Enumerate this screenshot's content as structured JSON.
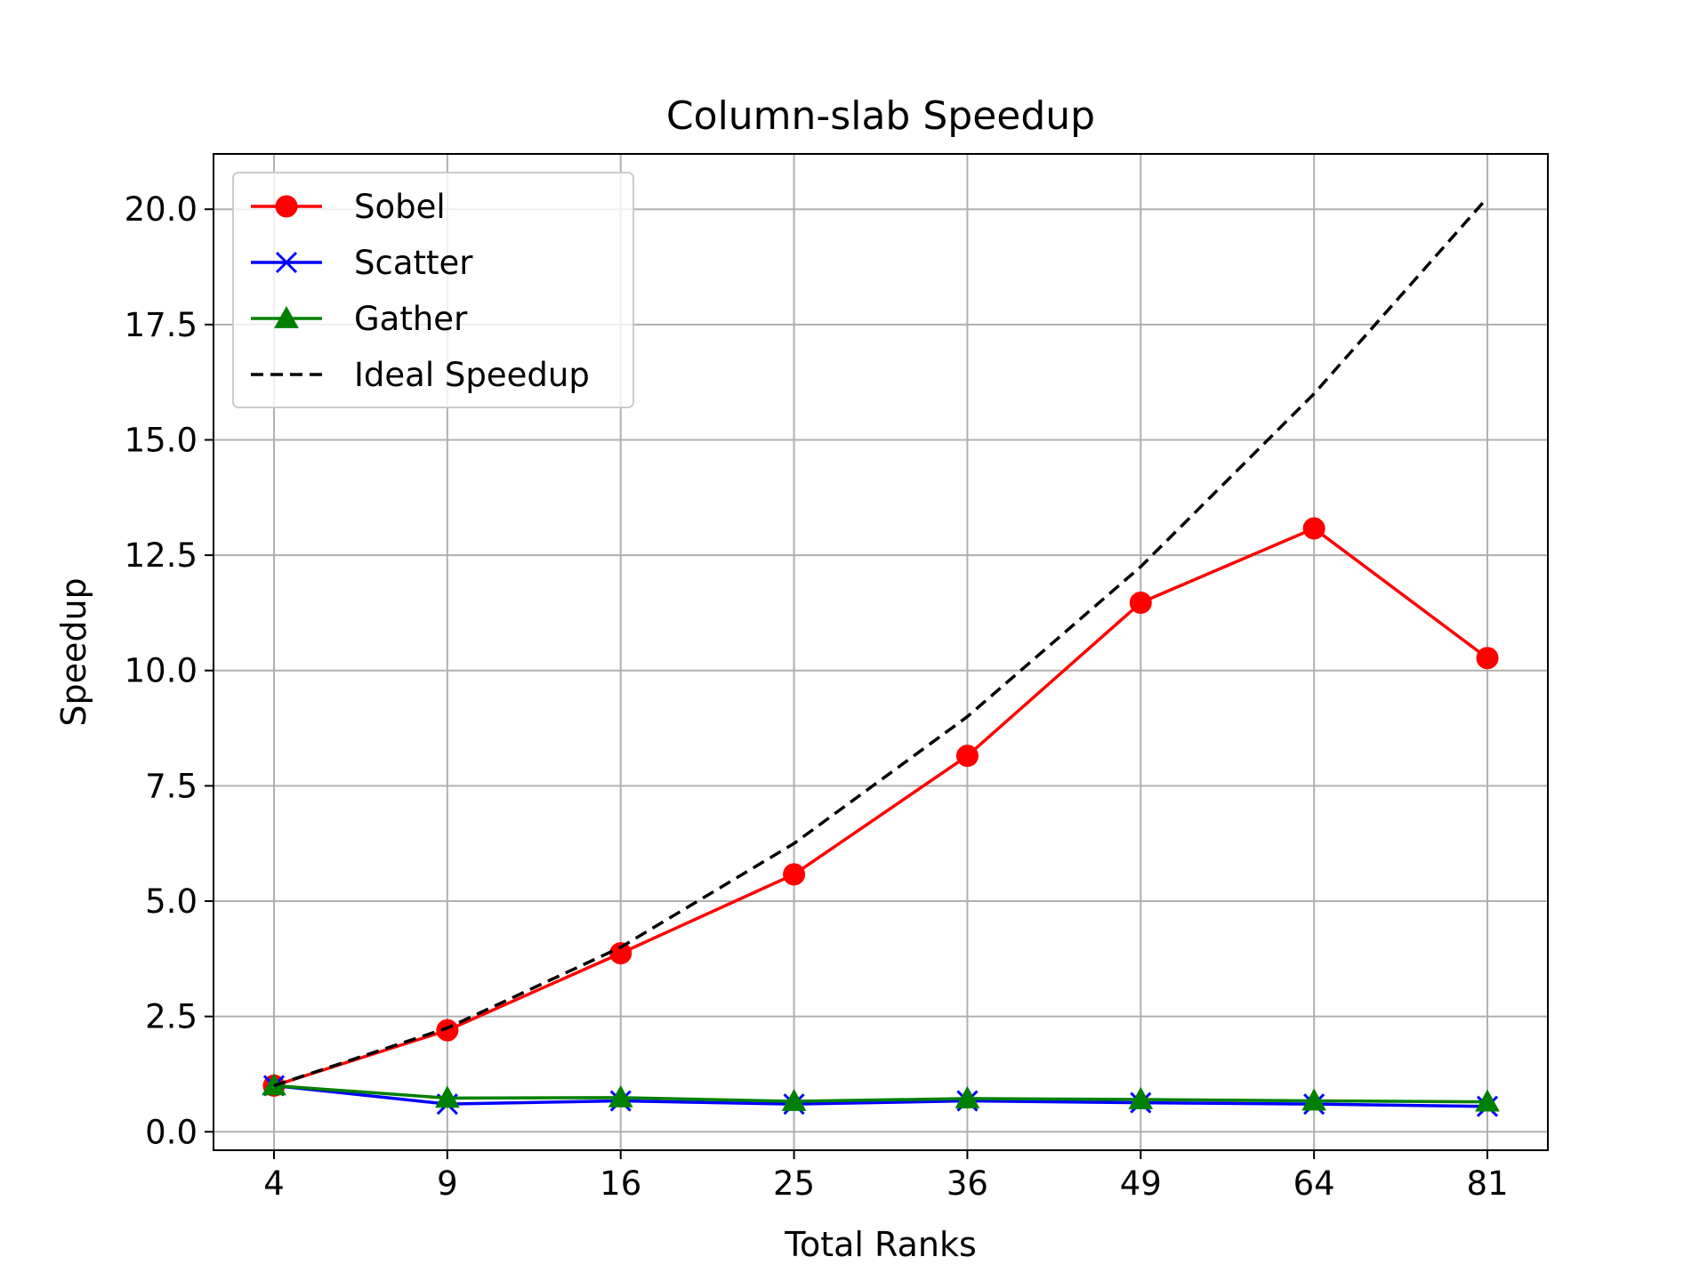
{
  "chart_data": {
    "type": "line",
    "title": "Column-slab Speedup",
    "xlabel": "Total Ranks",
    "ylabel": "Speedup",
    "categories": [
      "4",
      "9",
      "16",
      "25",
      "36",
      "49",
      "64",
      "81"
    ],
    "ylim": [
      -0.4,
      21.2
    ],
    "yticks": [
      "0.0",
      "2.5",
      "5.0",
      "7.5",
      "10.0",
      "12.5",
      "15.0",
      "17.5",
      "20.0"
    ],
    "grid": true,
    "legend_position": "top-left",
    "series": [
      {
        "name": "Sobel",
        "color": "#ff0000",
        "marker": "circle",
        "dash": "solid",
        "values": [
          1.0,
          2.2,
          3.87,
          5.58,
          8.15,
          11.47,
          13.08,
          10.27
        ]
      },
      {
        "name": "Scatter",
        "color": "#0000ff",
        "marker": "x",
        "dash": "solid",
        "values": [
          1.0,
          0.6,
          0.67,
          0.6,
          0.67,
          0.63,
          0.6,
          0.55
        ]
      },
      {
        "name": "Gather",
        "color": "#008000",
        "marker": "triangle",
        "dash": "solid",
        "values": [
          1.0,
          0.73,
          0.74,
          0.66,
          0.72,
          0.7,
          0.67,
          0.65
        ]
      },
      {
        "name": "Ideal Speedup",
        "color": "#000000",
        "marker": "none",
        "dash": "dashed",
        "values": [
          1.0,
          2.25,
          4.0,
          6.25,
          9.0,
          12.25,
          16.0,
          20.25
        ]
      }
    ]
  }
}
